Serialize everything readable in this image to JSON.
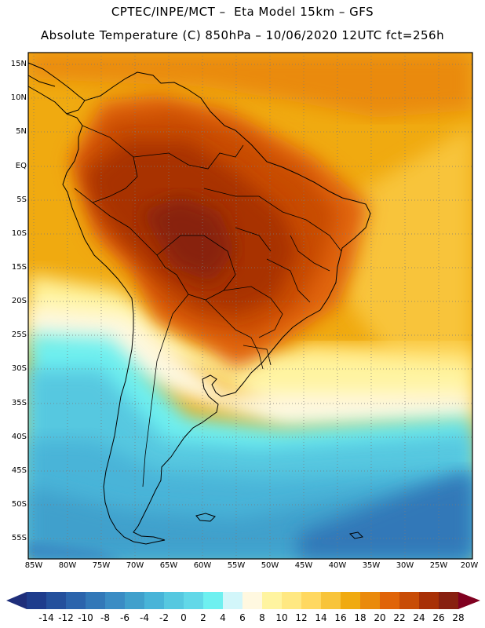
{
  "header": {
    "line1": "CPTEC/INPE/MCT –  Eta Model 15km – GFS",
    "line2": "Absolute Temperature (C) 850hPa – 10/06/2020 12UTC fct=256h"
  },
  "map": {
    "type": "filled-contour temperature map",
    "region": "South America",
    "lat_labels": [
      "15N",
      "10N",
      "5N",
      "EQ",
      "5S",
      "10S",
      "15S",
      "20S",
      "25S",
      "30S",
      "35S",
      "40S",
      "45S",
      "50S",
      "55S"
    ],
    "lat_values": [
      15,
      10,
      5,
      0,
      -5,
      -10,
      -15,
      -20,
      -25,
      -30,
      -35,
      -40,
      -45,
      -50,
      -55
    ],
    "lon_labels": [
      "85W",
      "80W",
      "75W",
      "70W",
      "65W",
      "60W",
      "55W",
      "50W",
      "45W",
      "40W",
      "35W",
      "30W",
      "25W",
      "20W"
    ],
    "lon_values": [
      -85,
      -80,
      -75,
      -70,
      -65,
      -60,
      -55,
      -50,
      -45,
      -40,
      -35,
      -30,
      -25,
      -20
    ],
    "lat_range": [
      -58,
      17
    ],
    "lon_range": [
      -86,
      -20
    ]
  },
  "colorbar": {
    "labels": [
      "-14",
      "-12",
      "-10",
      "-8",
      "-6",
      "-4",
      "-2",
      "0",
      "2",
      "4",
      "6",
      "8",
      "10",
      "12",
      "14",
      "16",
      "18",
      "20",
      "22",
      "24",
      "26",
      "28"
    ],
    "colors": [
      "#1e3c8c",
      "#24509c",
      "#2b64ac",
      "#3278b8",
      "#3a8cc4",
      "#40a0cc",
      "#48b4d8",
      "#56c8e0",
      "#62d8e8",
      "#6ef0f0",
      "#d2f6fa",
      "#fff8e0",
      "#fff4a0",
      "#ffe882",
      "#ffd860",
      "#f8c43a",
      "#f0aa10",
      "#ea8a0c",
      "#e06408",
      "#c84c06",
      "#a83006",
      "#882010"
    ],
    "under_color": "#1e2e7a",
    "over_color": "#800020"
  }
}
